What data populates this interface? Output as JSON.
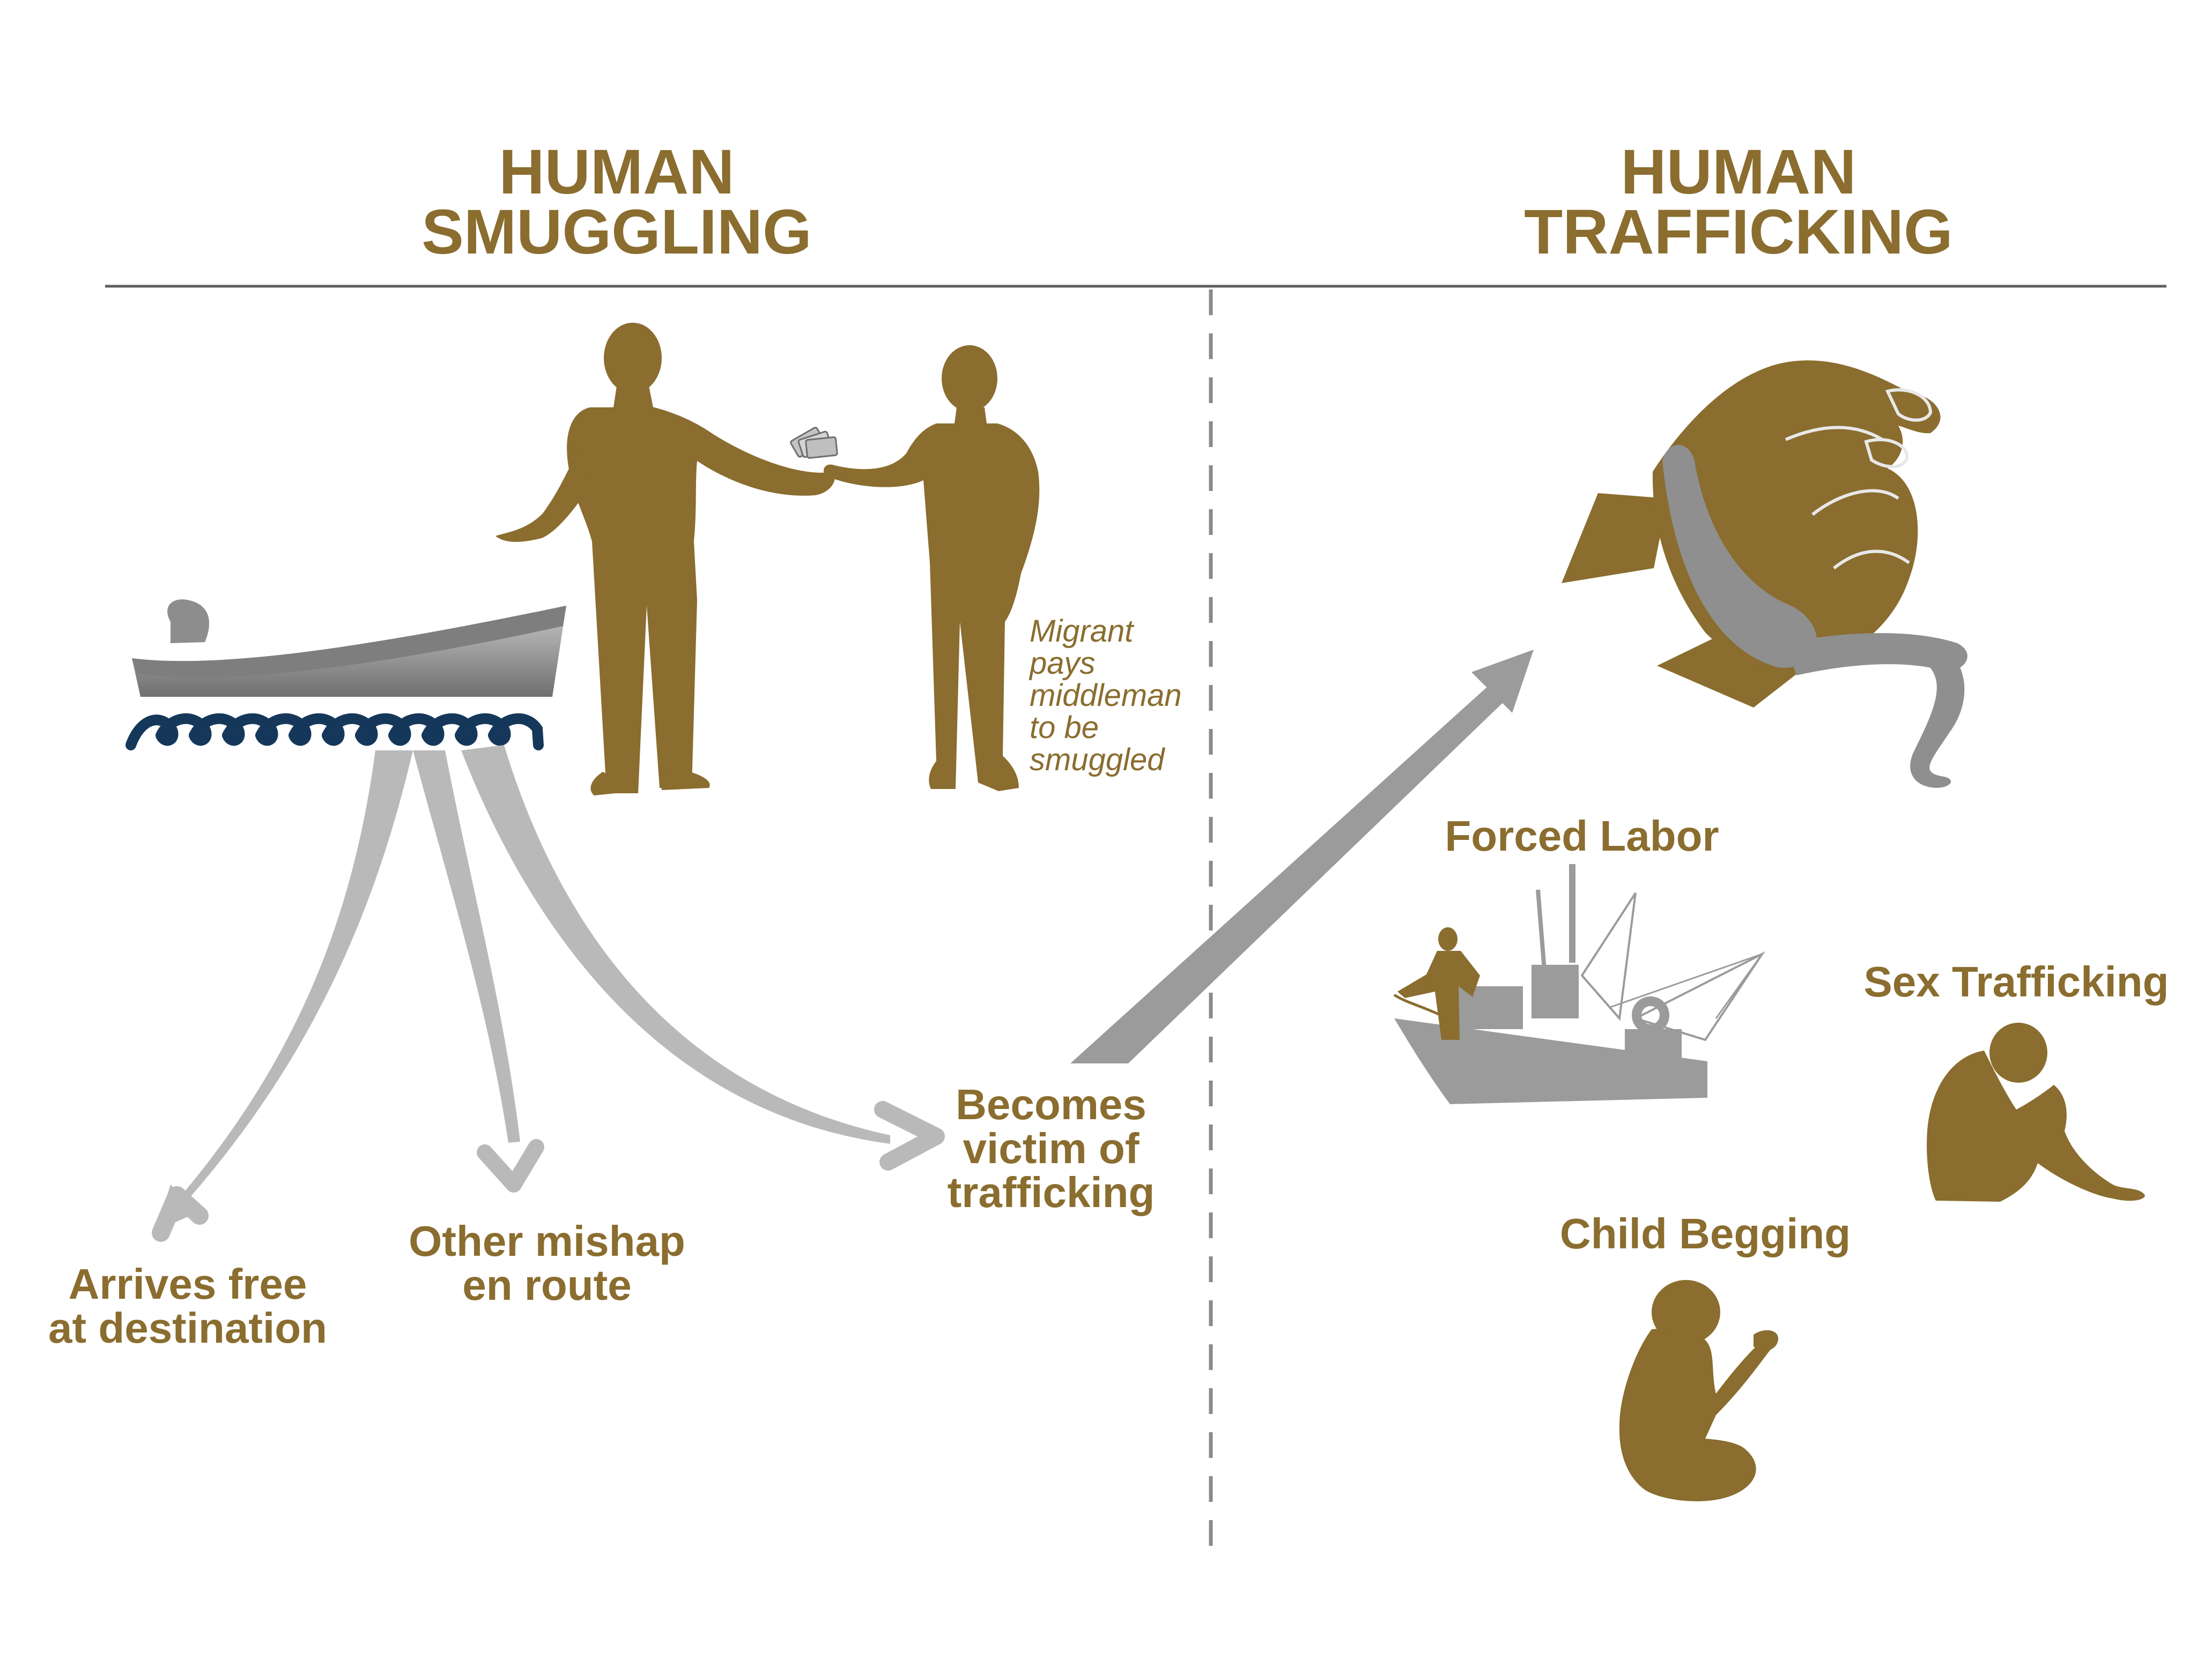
{
  "smuggling": {
    "title_line1": "HUMAN",
    "title_line2": "SMUGGLING",
    "payment_note": [
      "Migrant",
      "pays",
      "middleman",
      "to be",
      "smuggled"
    ],
    "outcomes": {
      "arrives_free": [
        "Arrives free",
        "at destination"
      ],
      "mishap": [
        "Other mishap",
        "en route"
      ],
      "victim": [
        "Becomes",
        "victim of",
        "trafficking"
      ]
    }
  },
  "trafficking": {
    "title_line1": "HUMAN",
    "title_line2": "TRAFFICKING",
    "categories": {
      "forced_labor": "Forced Labor",
      "sex_trafficking": "Sex Trafficking",
      "child_begging": "Child Begging"
    }
  },
  "colors": {
    "gold": "#8a6d2f",
    "gray": "#9b9b9b",
    "light_gray": "#b7b7b7",
    "navy": "#15385a",
    "rule": "#5e5e5e"
  },
  "icons": [
    "boat-icon",
    "smuggler-icon",
    "migrant-icon",
    "money-icon",
    "bound-hands-icon",
    "fishing-boat-icon",
    "child-begging-icon",
    "crouching-person-icon"
  ]
}
